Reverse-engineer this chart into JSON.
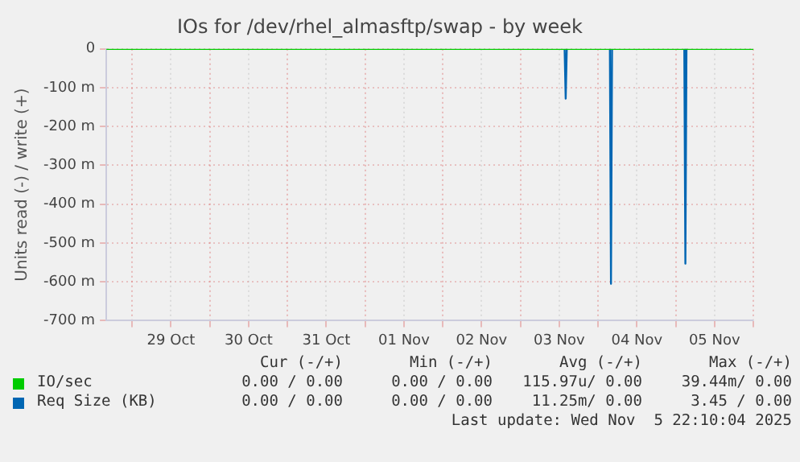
{
  "chart_data": {
    "type": "line",
    "title": "IOs for /dev/rhel_almasftp/swap - by week",
    "ylabel": "Units read (-) / write (+)",
    "xlim": [
      "2025-10-28T16:00",
      "2025-11-06T00:00"
    ],
    "ylim": [
      -700,
      0
    ],
    "xticks": [
      {
        "value": "2025-10-29",
        "label": null
      },
      {
        "value": "2025-10-29T12:00",
        "label": "29 Oct"
      },
      {
        "value": "2025-10-30",
        "label": null
      },
      {
        "value": "2025-10-30T12:00",
        "label": "30 Oct"
      },
      {
        "value": "2025-10-31",
        "label": null
      },
      {
        "value": "2025-10-31T12:00",
        "label": "31 Oct"
      },
      {
        "value": "2025-11-01",
        "label": null
      },
      {
        "value": "2025-11-01T12:00",
        "label": "01 Nov"
      },
      {
        "value": "2025-11-02",
        "label": null
      },
      {
        "value": "2025-11-02T12:00",
        "label": "02 Nov"
      },
      {
        "value": "2025-11-03",
        "label": null
      },
      {
        "value": "2025-11-03T12:00",
        "label": "03 Nov"
      },
      {
        "value": "2025-11-04",
        "label": null
      },
      {
        "value": "2025-11-04T12:00",
        "label": "04 Nov"
      },
      {
        "value": "2025-11-05",
        "label": null
      },
      {
        "value": "2025-11-05T12:00",
        "label": "05 Nov"
      },
      {
        "value": "2025-11-06",
        "label": null
      }
    ],
    "yticks": [
      0,
      {
        "value": -100,
        "label": "-100 m"
      },
      {
        "value": -200,
        "label": "-200 m"
      },
      {
        "value": -300,
        "label": "-300 m"
      },
      {
        "value": -400,
        "label": "-400 m"
      },
      {
        "value": -500,
        "label": "-500 m"
      },
      {
        "value": -600,
        "label": "-600 m"
      },
      {
        "value": -700,
        "label": "-700 m"
      }
    ],
    "grid": true,
    "legend": "bottom",
    "marker": "none",
    "line_style": "solid",
    "series": [
      {
        "name": "IO/sec",
        "color": "#00cc00",
        "x": [
          "2025-10-28T16:00",
          "2025-11-06T00:00"
        ],
        "values": [
          0,
          0
        ]
      },
      {
        "name": "Req Size (KB)",
        "color": "#0066b3",
        "x": [
          "2025-11-03T13:40",
          "2025-11-03T14:00",
          "2025-11-03T14:20",
          "2025-11-03T20:00",
          "2025-11-04T03:40",
          "2025-11-04T04:00",
          "2025-11-04T04:20",
          "2025-11-04T16:00",
          "2025-11-05T02:40",
          "2025-11-05T03:00",
          "2025-11-05T03:20"
        ],
        "values": [
          0,
          -128,
          0,
          null,
          0,
          -605,
          0,
          null,
          0,
          -553,
          0
        ]
      }
    ],
    "annotations": [
      "Cur (-/+)",
      "Min (-/+)",
      "Avg (-/+)",
      "Max (-/+)",
      "0.00 / 0.00",
      "0.00 / 0.00",
      "115.97u/ 0.00",
      "39.44m/ 0.00",
      "0.00 / 0.00",
      "0.00 / 0.00",
      "11.25m/ 0.00",
      "3.45 / 0.00",
      "Last update: Wed Nov  5 22:10:04 2025"
    ]
  }
}
